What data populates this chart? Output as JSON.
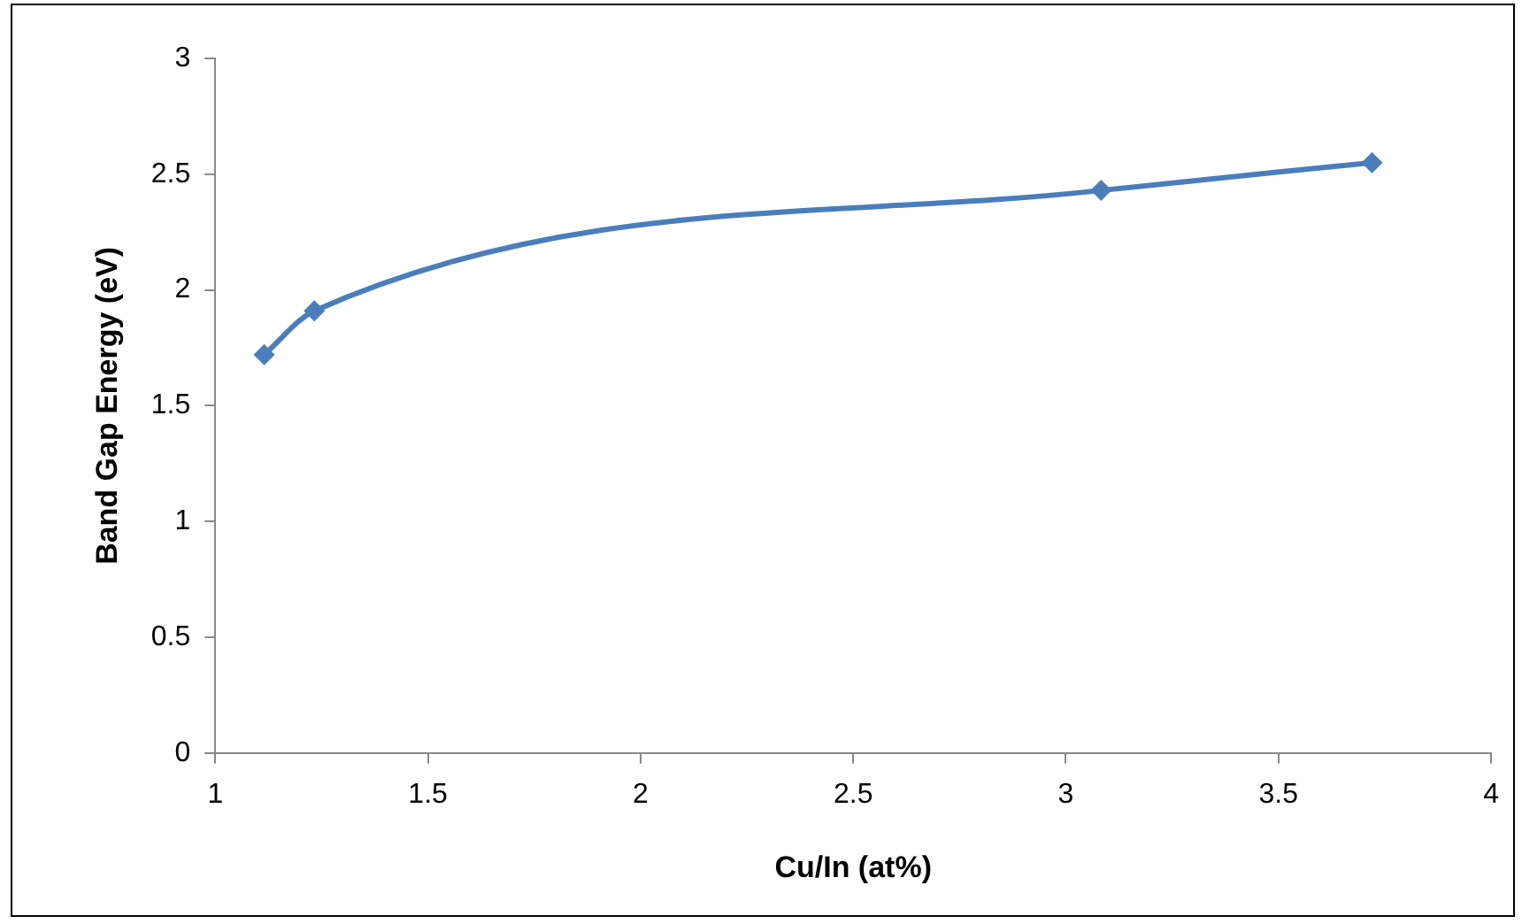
{
  "chart_data": {
    "type": "line",
    "xlabel": "Cu/In (at%)",
    "ylabel": "Band Gap Energy (eV)",
    "x": [
      1.115,
      1.233,
      3.083,
      3.72
    ],
    "series": [
      {
        "color": "#4a7ebb",
        "values": [
          1.72,
          1.91,
          2.43,
          2.55
        ]
      }
    ],
    "xlim": [
      1,
      4
    ],
    "xticks": [
      1,
      1.5,
      2,
      2.5,
      3,
      3.5,
      4
    ],
    "ylim": [
      0,
      3
    ],
    "yticks": [
      0,
      0.5,
      1,
      1.5,
      2,
      2.5,
      3
    ],
    "grid": false,
    "legend": false,
    "marker": "diamond",
    "line_style": "solid"
  }
}
